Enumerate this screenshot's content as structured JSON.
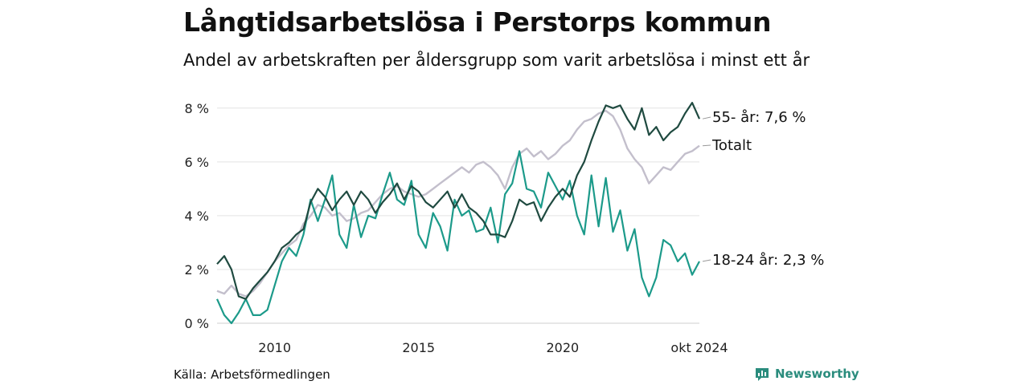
{
  "header": {
    "title": "Långtidsarbetslösa i Perstorps kommun",
    "subtitle": "Andel av arbetskraften per åldersgrupp som varit arbetslösa i minst ett år"
  },
  "footer": {
    "source": "Källa: Arbetsförmedlingen",
    "brand": "Newsworthy"
  },
  "colors": {
    "total": "#c3bfcc",
    "young": "#1c9a8a",
    "old": "#1f4a40",
    "grid": "#e3e3e3",
    "brand": "#2a8c7d"
  },
  "chart_data": {
    "type": "line",
    "ylim": [
      0,
      8.5
    ],
    "xlim": [
      "2008-01",
      "2024-10"
    ],
    "y_ticks": [
      {
        "value": 0,
        "label": "0 %"
      },
      {
        "value": 2,
        "label": "2 %"
      },
      {
        "value": 4,
        "label": "4 %"
      },
      {
        "value": 6,
        "label": "6 %"
      },
      {
        "value": 8,
        "label": "8 %"
      }
    ],
    "x_ticks": [
      {
        "value": "2010-01",
        "label": "2010"
      },
      {
        "value": "2015-01",
        "label": "2015"
      },
      {
        "value": "2020-01",
        "label": "2020"
      },
      {
        "value": "2024-10",
        "label": "okt 2024"
      }
    ],
    "grid": true,
    "series": [
      {
        "key": "total",
        "label": "Totalt",
        "points": [
          [
            "2008-01",
            1.2
          ],
          [
            "2008-04",
            1.1
          ],
          [
            "2008-07",
            1.4
          ],
          [
            "2008-10",
            1.1
          ],
          [
            "2009-01",
            1.0
          ],
          [
            "2009-04",
            1.2
          ],
          [
            "2009-07",
            1.5
          ],
          [
            "2009-10",
            1.9
          ],
          [
            "2010-01",
            2.3
          ],
          [
            "2010-04",
            2.6
          ],
          [
            "2010-07",
            2.9
          ],
          [
            "2010-10",
            3.1
          ],
          [
            "2011-01",
            3.7
          ],
          [
            "2011-04",
            4.0
          ],
          [
            "2011-07",
            4.4
          ],
          [
            "2011-10",
            4.3
          ],
          [
            "2012-01",
            4.0
          ],
          [
            "2012-04",
            4.1
          ],
          [
            "2012-07",
            3.8
          ],
          [
            "2012-10",
            3.9
          ],
          [
            "2013-01",
            4.1
          ],
          [
            "2013-04",
            4.2
          ],
          [
            "2013-07",
            4.5
          ],
          [
            "2013-10",
            4.8
          ],
          [
            "2014-01",
            5.0
          ],
          [
            "2014-04",
            5.1
          ],
          [
            "2014-07",
            4.9
          ],
          [
            "2014-10",
            4.8
          ],
          [
            "2015-01",
            4.7
          ],
          [
            "2015-04",
            4.8
          ],
          [
            "2015-07",
            5.0
          ],
          [
            "2015-10",
            5.2
          ],
          [
            "2016-01",
            5.4
          ],
          [
            "2016-04",
            5.6
          ],
          [
            "2016-07",
            5.8
          ],
          [
            "2016-10",
            5.6
          ],
          [
            "2017-01",
            5.9
          ],
          [
            "2017-04",
            6.0
          ],
          [
            "2017-07",
            5.8
          ],
          [
            "2017-10",
            5.5
          ],
          [
            "2018-01",
            5.0
          ],
          [
            "2018-04",
            5.8
          ],
          [
            "2018-07",
            6.3
          ],
          [
            "2018-10",
            6.5
          ],
          [
            "2019-01",
            6.2
          ],
          [
            "2019-04",
            6.4
          ],
          [
            "2019-07",
            6.1
          ],
          [
            "2019-10",
            6.3
          ],
          [
            "2020-01",
            6.6
          ],
          [
            "2020-04",
            6.8
          ],
          [
            "2020-07",
            7.2
          ],
          [
            "2020-10",
            7.5
          ],
          [
            "2021-01",
            7.6
          ],
          [
            "2021-04",
            7.8
          ],
          [
            "2021-07",
            7.9
          ],
          [
            "2021-10",
            7.7
          ],
          [
            "2022-01",
            7.2
          ],
          [
            "2022-04",
            6.5
          ],
          [
            "2022-07",
            6.1
          ],
          [
            "2022-10",
            5.8
          ],
          [
            "2023-01",
            5.2
          ],
          [
            "2023-04",
            5.5
          ],
          [
            "2023-07",
            5.8
          ],
          [
            "2023-10",
            5.7
          ],
          [
            "2024-01",
            6.0
          ],
          [
            "2024-04",
            6.3
          ],
          [
            "2024-07",
            6.4
          ],
          [
            "2024-10",
            6.6
          ]
        ]
      },
      {
        "key": "young",
        "label": "18-24 år: 2,3 %",
        "points": [
          [
            "2008-01",
            0.9
          ],
          [
            "2008-04",
            0.3
          ],
          [
            "2008-07",
            0.0
          ],
          [
            "2008-10",
            0.4
          ],
          [
            "2009-01",
            0.9
          ],
          [
            "2009-04",
            0.3
          ],
          [
            "2009-07",
            0.3
          ],
          [
            "2009-10",
            0.5
          ],
          [
            "2010-01",
            1.4
          ],
          [
            "2010-04",
            2.3
          ],
          [
            "2010-07",
            2.8
          ],
          [
            "2010-10",
            2.5
          ],
          [
            "2011-01",
            3.3
          ],
          [
            "2011-04",
            4.6
          ],
          [
            "2011-07",
            3.8
          ],
          [
            "2011-10",
            4.6
          ],
          [
            "2012-01",
            5.5
          ],
          [
            "2012-04",
            3.3
          ],
          [
            "2012-07",
            2.8
          ],
          [
            "2012-10",
            4.4
          ],
          [
            "2013-01",
            3.2
          ],
          [
            "2013-04",
            4.0
          ],
          [
            "2013-07",
            3.9
          ],
          [
            "2013-10",
            4.8
          ],
          [
            "2014-01",
            5.6
          ],
          [
            "2014-04",
            4.6
          ],
          [
            "2014-07",
            4.4
          ],
          [
            "2014-10",
            5.3
          ],
          [
            "2015-01",
            3.3
          ],
          [
            "2015-04",
            2.8
          ],
          [
            "2015-07",
            4.1
          ],
          [
            "2015-10",
            3.6
          ],
          [
            "2016-01",
            2.7
          ],
          [
            "2016-04",
            4.6
          ],
          [
            "2016-07",
            4.0
          ],
          [
            "2016-10",
            4.2
          ],
          [
            "2017-01",
            3.4
          ],
          [
            "2017-04",
            3.5
          ],
          [
            "2017-07",
            4.3
          ],
          [
            "2017-10",
            3.0
          ],
          [
            "2018-01",
            4.8
          ],
          [
            "2018-04",
            5.2
          ],
          [
            "2018-07",
            6.4
          ],
          [
            "2018-10",
            5.0
          ],
          [
            "2019-01",
            4.9
          ],
          [
            "2019-04",
            4.3
          ],
          [
            "2019-07",
            5.6
          ],
          [
            "2019-10",
            5.1
          ],
          [
            "2020-01",
            4.6
          ],
          [
            "2020-04",
            5.3
          ],
          [
            "2020-07",
            4.0
          ],
          [
            "2020-10",
            3.3
          ],
          [
            "2021-01",
            5.5
          ],
          [
            "2021-04",
            3.6
          ],
          [
            "2021-07",
            5.4
          ],
          [
            "2021-10",
            3.4
          ],
          [
            "2022-01",
            4.2
          ],
          [
            "2022-04",
            2.7
          ],
          [
            "2022-07",
            3.5
          ],
          [
            "2022-10",
            1.7
          ],
          [
            "2023-01",
            1.0
          ],
          [
            "2023-04",
            1.7
          ],
          [
            "2023-07",
            3.1
          ],
          [
            "2023-10",
            2.9
          ],
          [
            "2024-01",
            2.3
          ],
          [
            "2024-04",
            2.6
          ],
          [
            "2024-07",
            1.8
          ],
          [
            "2024-10",
            2.3
          ]
        ]
      },
      {
        "key": "old",
        "label": "55- år: 7,6 %",
        "points": [
          [
            "2008-01",
            2.2
          ],
          [
            "2008-04",
            2.5
          ],
          [
            "2008-07",
            2.0
          ],
          [
            "2008-10",
            1.0
          ],
          [
            "2009-01",
            0.9
          ],
          [
            "2009-04",
            1.3
          ],
          [
            "2009-07",
            1.6
          ],
          [
            "2009-10",
            1.9
          ],
          [
            "2010-01",
            2.3
          ],
          [
            "2010-04",
            2.8
          ],
          [
            "2010-07",
            3.0
          ],
          [
            "2010-10",
            3.3
          ],
          [
            "2011-01",
            3.5
          ],
          [
            "2011-04",
            4.5
          ],
          [
            "2011-07",
            5.0
          ],
          [
            "2011-10",
            4.7
          ],
          [
            "2012-01",
            4.2
          ],
          [
            "2012-04",
            4.6
          ],
          [
            "2012-07",
            4.9
          ],
          [
            "2012-10",
            4.4
          ],
          [
            "2013-01",
            4.9
          ],
          [
            "2013-04",
            4.6
          ],
          [
            "2013-07",
            4.1
          ],
          [
            "2013-10",
            4.5
          ],
          [
            "2014-01",
            4.8
          ],
          [
            "2014-04",
            5.2
          ],
          [
            "2014-07",
            4.6
          ],
          [
            "2014-10",
            5.1
          ],
          [
            "2015-01",
            4.9
          ],
          [
            "2015-04",
            4.5
          ],
          [
            "2015-07",
            4.3
          ],
          [
            "2015-10",
            4.6
          ],
          [
            "2016-01",
            4.9
          ],
          [
            "2016-04",
            4.3
          ],
          [
            "2016-07",
            4.8
          ],
          [
            "2016-10",
            4.3
          ],
          [
            "2017-01",
            4.1
          ],
          [
            "2017-04",
            3.8
          ],
          [
            "2017-07",
            3.3
          ],
          [
            "2017-10",
            3.3
          ],
          [
            "2018-01",
            3.2
          ],
          [
            "2018-04",
            3.8
          ],
          [
            "2018-07",
            4.6
          ],
          [
            "2018-10",
            4.4
          ],
          [
            "2019-01",
            4.5
          ],
          [
            "2019-04",
            3.8
          ],
          [
            "2019-07",
            4.3
          ],
          [
            "2019-10",
            4.7
          ],
          [
            "2020-01",
            5.0
          ],
          [
            "2020-04",
            4.7
          ],
          [
            "2020-07",
            5.5
          ],
          [
            "2020-10",
            6.0
          ],
          [
            "2021-01",
            6.8
          ],
          [
            "2021-04",
            7.5
          ],
          [
            "2021-07",
            8.1
          ],
          [
            "2021-10",
            8.0
          ],
          [
            "2022-01",
            8.1
          ],
          [
            "2022-04",
            7.6
          ],
          [
            "2022-07",
            7.2
          ],
          [
            "2022-10",
            8.0
          ],
          [
            "2023-01",
            7.0
          ],
          [
            "2023-04",
            7.3
          ],
          [
            "2023-07",
            6.8
          ],
          [
            "2023-10",
            7.1
          ],
          [
            "2024-01",
            7.3
          ],
          [
            "2024-04",
            7.8
          ],
          [
            "2024-07",
            8.2
          ],
          [
            "2024-10",
            7.6
          ]
        ]
      }
    ]
  }
}
